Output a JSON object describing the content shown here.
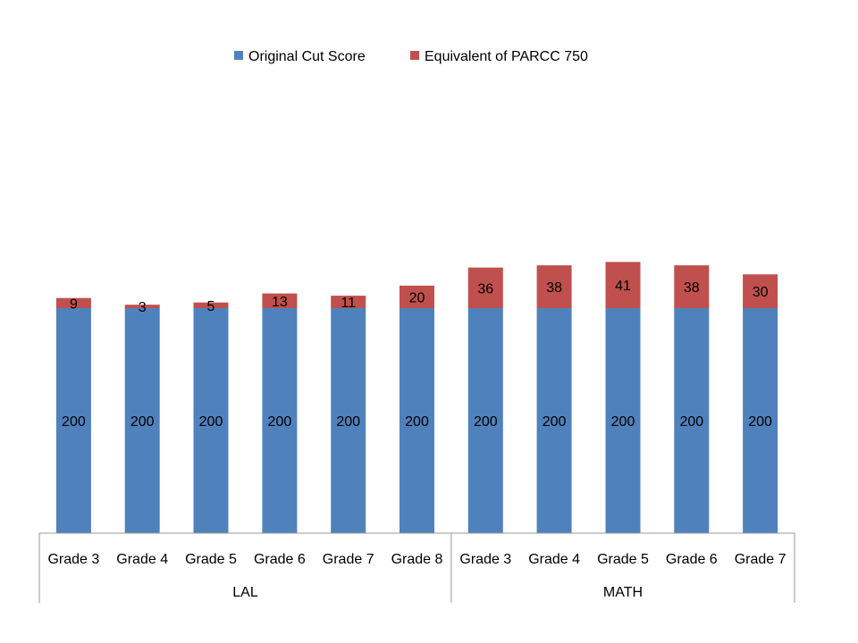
{
  "chart_data": {
    "type": "bar",
    "stacked": true,
    "categories": [
      "Grade 3",
      "Grade 4",
      "Grade 5",
      "Grade 6",
      "Grade 7",
      "Grade 8",
      "Grade 3",
      "Grade 4",
      "Grade 5",
      "Grade 6",
      "Grade 7"
    ],
    "groups": [
      {
        "label": "LAL",
        "count": 6
      },
      {
        "label": "MATH",
        "count": 5
      }
    ],
    "series": [
      {
        "name": "Original Cut Score",
        "color": "#4F81BD",
        "values": [
          200,
          200,
          200,
          200,
          200,
          200,
          200,
          200,
          200,
          200,
          200
        ]
      },
      {
        "name": "Equivalent of PARCC 750",
        "color": "#C0504D",
        "values": [
          9,
          3,
          5,
          13,
          11,
          20,
          36,
          38,
          41,
          38,
          30
        ]
      }
    ],
    "data_labels": true,
    "legend_position": "top",
    "grid": false,
    "ylim": [
      0,
      250
    ]
  }
}
